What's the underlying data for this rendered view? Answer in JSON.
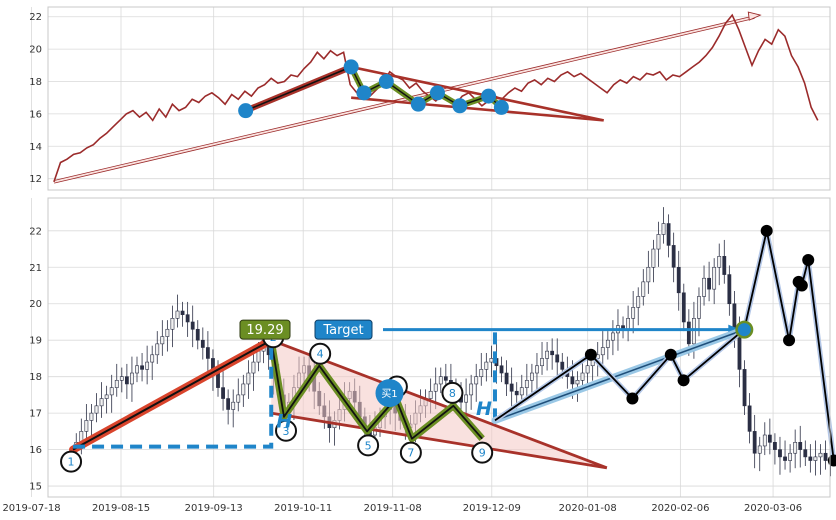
{
  "chart_data": [
    {
      "type": "line",
      "panel": "top",
      "title": "",
      "xlabel": "",
      "ylabel": "",
      "ylim": [
        11.3,
        22.6
      ],
      "yticks": [
        12,
        14,
        16,
        18,
        20,
        22
      ],
      "grid": true,
      "colors": {
        "price": "#9b2b2b",
        "trend": "#a8322a",
        "marker": "#1f85c9",
        "zigzag": "#6b8e23"
      },
      "price_series": {
        "name": "close",
        "start": "2019-07-25",
        "end": "2020-03-20",
        "values": [
          11.8,
          13.0,
          13.2,
          13.5,
          13.6,
          13.9,
          14.1,
          14.5,
          14.8,
          15.2,
          15.6,
          16.0,
          16.2,
          15.8,
          16.1,
          15.6,
          16.3,
          15.8,
          16.6,
          16.2,
          16.4,
          16.9,
          16.7,
          17.1,
          17.3,
          17.0,
          16.6,
          17.2,
          16.9,
          17.4,
          17.1,
          17.6,
          17.8,
          18.2,
          17.9,
          18.0,
          18.4,
          18.3,
          18.8,
          19.2,
          19.8,
          19.4,
          19.9,
          19.6,
          19.8,
          17.8,
          17.3,
          17.6,
          17.1,
          17.5,
          17.9,
          18.6,
          18.3,
          18.1,
          17.6,
          17.9,
          17.4,
          17.1,
          16.8,
          17.2,
          16.9,
          16.6,
          17.1,
          17.3,
          16.9,
          16.5,
          16.8,
          17.1,
          16.9,
          17.3,
          17.6,
          17.4,
          17.9,
          18.1,
          17.8,
          18.2,
          18.0,
          18.4,
          18.6,
          18.3,
          18.5,
          18.2,
          17.9,
          17.6,
          17.3,
          17.8,
          18.1,
          17.9,
          18.3,
          18.1,
          18.5,
          18.4,
          18.6,
          18.1,
          18.4,
          18.3,
          18.6,
          18.9,
          19.2,
          19.6,
          20.1,
          20.8,
          21.6,
          22.1,
          21.2,
          20.1,
          19.0,
          19.9,
          20.6,
          20.3,
          21.2,
          20.8,
          19.6,
          18.9,
          17.9,
          16.4,
          15.6
        ]
      },
      "triangle": {
        "upper": [
          [
            "2019-10-26",
            18.9
          ],
          [
            "2020-01-13",
            15.6
          ]
        ],
        "lower": [
          [
            "2019-10-26",
            17.0
          ],
          [
            "2020-01-13",
            15.6
          ]
        ]
      },
      "trend_line": [
        [
          "2019-09-23",
          16.2
        ],
        [
          "2019-10-26",
          18.9
        ]
      ],
      "zigzag_points": [
        [
          "2019-10-26",
          18.9
        ],
        [
          "2019-10-30",
          17.3
        ],
        [
          "2019-11-06",
          18.0
        ],
        [
          "2019-11-16",
          16.6
        ],
        [
          "2019-11-22",
          17.3
        ],
        [
          "2019-11-29",
          16.5
        ],
        [
          "2019-12-08",
          17.1
        ],
        [
          "2019-12-12",
          16.4
        ]
      ],
      "long_arrow": [
        [
          "2019-07-25",
          11.8
        ],
        [
          "2020-03-02",
          22.1
        ]
      ]
    },
    {
      "type": "candlestick",
      "panel": "bottom",
      "title": "",
      "xlabel": "",
      "ylabel": "",
      "ylim": [
        14.7,
        22.9
      ],
      "yticks": [
        15,
        16,
        17,
        18,
        19,
        20,
        21,
        22
      ],
      "xticks": [
        "2019-07-18",
        "2019-08-15",
        "2019-09-13",
        "2019-10-11",
        "2019-11-08",
        "2019-12-09",
        "2020-01-08",
        "2020-02-06",
        "2020-03-06"
      ],
      "grid": true,
      "colors": {
        "up": "#f0f0f0",
        "down": "#2b2f44",
        "trend": "#a8322a",
        "zigzag": "#6b8e23",
        "target": "#1f85c9",
        "pivots": "#000000",
        "triangle_fill": "#f4c9c5"
      },
      "labels": {
        "price_box": "19.29",
        "target_box": "Target",
        "buy_marker": "买1",
        "h_left": "H",
        "h_right": "H",
        "points": [
          "1",
          "2",
          "3",
          "4",
          "5",
          "6",
          "7",
          "8",
          "9"
        ]
      },
      "pattern_points": [
        [
          "2019-07-31",
          16.0
        ],
        [
          "2019-10-01",
          19.0
        ],
        [
          "2019-10-05",
          16.9
        ],
        [
          "2019-10-16",
          18.3
        ],
        [
          "2019-10-31",
          16.5
        ],
        [
          "2019-11-09",
          17.4
        ],
        [
          "2019-11-14",
          16.3
        ],
        [
          "2019-11-27",
          17.2
        ],
        [
          "2019-12-06",
          16.3
        ]
      ],
      "pivot_points": [
        [
          "2020-01-09",
          18.6
        ],
        [
          "2020-01-22",
          17.4
        ],
        [
          "2020-02-03",
          18.6
        ],
        [
          "2020-02-07",
          17.9
        ],
        [
          "2020-02-26",
          19.3
        ],
        [
          "2020-03-04",
          22.0
        ],
        [
          "2020-03-11",
          19.0
        ],
        [
          "2020-03-14",
          20.6
        ],
        [
          "2020-03-15",
          20.5
        ],
        [
          "2020-03-17",
          21.2
        ],
        [
          "2020-03-25",
          15.7
        ]
      ],
      "target_price": 19.29,
      "breakout": [
        "2019-12-10",
        16.8
      ],
      "triangle": {
        "upper": [
          [
            "2019-10-01",
            19.0
          ],
          [
            "2020-01-14",
            15.5
          ]
        ],
        "lower": [
          [
            "2019-10-01",
            17.0
          ],
          [
            "2020-01-14",
            15.5
          ]
        ]
      },
      "candles": {
        "start": "2019-08-01",
        "count": 150,
        "close": [
          16.2,
          16.5,
          16.8,
          17.0,
          17.2,
          17.4,
          17.5,
          17.7,
          17.9,
          18.0,
          17.8,
          18.1,
          18.3,
          18.2,
          18.4,
          18.6,
          18.9,
          19.1,
          19.3,
          19.6,
          19.8,
          19.7,
          19.5,
          19.3,
          19.0,
          18.8,
          18.5,
          18.1,
          17.7,
          17.4,
          17.1,
          17.3,
          17.5,
          17.8,
          18.1,
          18.4,
          18.7,
          19.0,
          18.6,
          18.0,
          17.5,
          17.0,
          17.3,
          17.7,
          18.1,
          18.3,
          18.0,
          17.6,
          17.2,
          16.9,
          16.6,
          16.8,
          17.1,
          17.4,
          17.6,
          17.3,
          16.9,
          16.6,
          16.4,
          16.6,
          16.9,
          17.1,
          17.3,
          17.0,
          16.8,
          16.6,
          16.7,
          17.0,
          17.2,
          17.4,
          17.6,
          17.8,
          18.0,
          17.9,
          17.7,
          17.5,
          17.3,
          17.5,
          17.8,
          18.0,
          18.2,
          18.4,
          18.5,
          18.3,
          18.1,
          17.8,
          17.6,
          17.5,
          17.7,
          17.9,
          18.1,
          18.3,
          18.5,
          18.7,
          18.6,
          18.4,
          18.2,
          18.0,
          17.8,
          17.9,
          18.1,
          18.3,
          18.5,
          18.6,
          18.8,
          19.0,
          19.2,
          19.4,
          19.3,
          19.6,
          19.9,
          20.2,
          20.6,
          21.0,
          21.5,
          21.9,
          22.2,
          21.6,
          21.0,
          20.3,
          19.5,
          18.9,
          19.6,
          20.2,
          20.7,
          20.4,
          21.0,
          21.3,
          20.8,
          20.0,
          19.2,
          18.2,
          17.2,
          16.5,
          15.9,
          16.1,
          16.4,
          16.2,
          16.0,
          15.8,
          15.7,
          15.9,
          16.2,
          16.0,
          15.8,
          15.7,
          15.8,
          15.9,
          15.7,
          15.6
        ],
        "open": [
          16.0,
          16.2,
          16.5,
          16.8,
          17.0,
          17.2,
          17.4,
          17.5,
          17.7,
          17.9,
          18.0,
          17.8,
          18.1,
          18.3,
          18.2,
          18.4,
          18.6,
          18.9,
          19.1,
          19.3,
          19.6,
          19.8,
          19.7,
          19.5,
          19.3,
          19.0,
          18.8,
          18.5,
          18.1,
          17.7,
          17.4,
          17.1,
          17.3,
          17.5,
          17.8,
          18.1,
          18.4,
          18.7,
          19.0,
          18.6,
          18.0,
          17.5,
          17.0,
          17.3,
          17.7,
          18.1,
          18.3,
          18.0,
          17.6,
          17.2,
          16.9,
          16.6,
          16.8,
          17.1,
          17.4,
          17.6,
          17.3,
          16.9,
          16.6,
          16.4,
          16.6,
          16.9,
          17.1,
          17.3,
          17.0,
          16.8,
          16.6,
          16.7,
          17.0,
          17.2,
          17.4,
          17.6,
          17.8,
          18.0,
          17.9,
          17.7,
          17.5,
          17.3,
          17.5,
          17.8,
          18.0,
          18.2,
          18.4,
          18.5,
          18.3,
          18.1,
          17.8,
          17.6,
          17.5,
          17.7,
          17.9,
          18.1,
          18.3,
          18.5,
          18.7,
          18.6,
          18.4,
          18.2,
          18.0,
          17.8,
          17.9,
          18.1,
          18.3,
          18.5,
          18.6,
          18.8,
          19.0,
          19.2,
          19.4,
          19.3,
          19.6,
          19.9,
          20.2,
          20.6,
          21.0,
          21.5,
          21.9,
          22.2,
          21.6,
          21.0,
          20.3,
          19.5,
          18.9,
          19.6,
          20.2,
          20.7,
          20.4,
          21.0,
          21.3,
          20.8,
          20.0,
          19.2,
          18.2,
          17.2,
          16.5,
          15.9,
          16.1,
          16.4,
          16.2,
          16.0,
          15.8,
          15.7,
          15.9,
          16.2,
          16.0,
          15.8,
          15.7,
          15.8,
          15.9,
          15.7
        ]
      }
    }
  ]
}
